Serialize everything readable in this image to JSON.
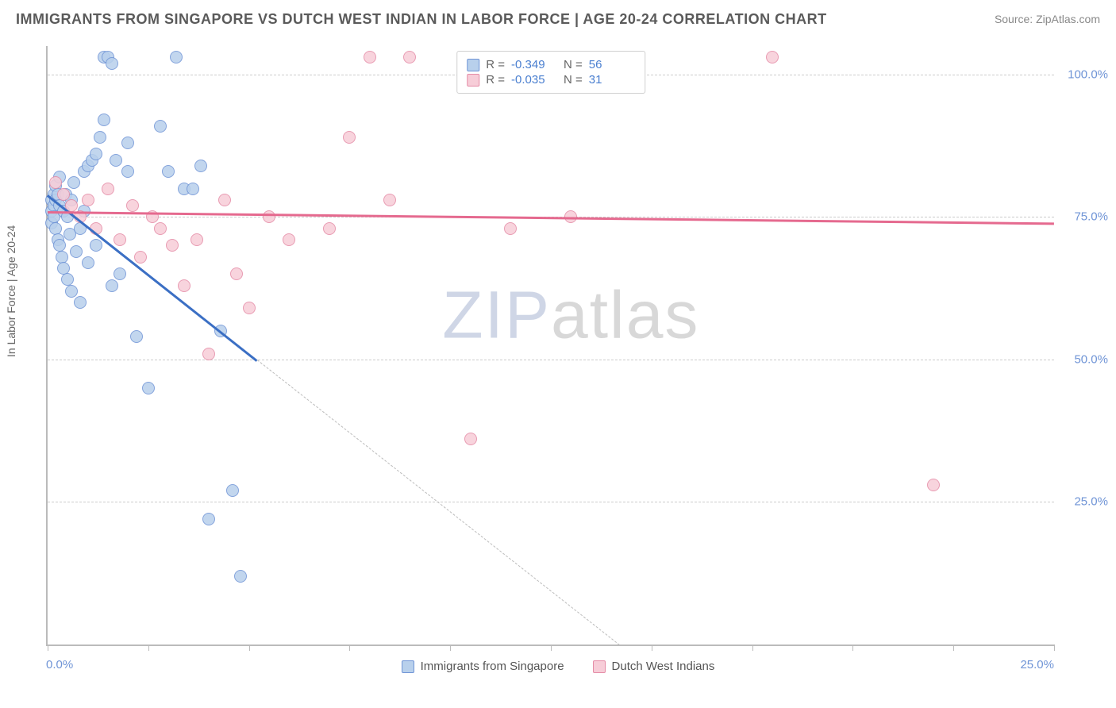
{
  "header": {
    "title": "IMMIGRANTS FROM SINGAPORE VS DUTCH WEST INDIAN IN LABOR FORCE | AGE 20-24 CORRELATION CHART",
    "source_prefix": "Source: ",
    "source_link": "ZipAtlas.com"
  },
  "chart": {
    "type": "scatter",
    "y_axis_label": "In Labor Force | Age 20-24",
    "xlim": [
      0,
      25
    ],
    "ylim": [
      0,
      105
    ],
    "x_tick_positions": [
      0,
      2.5,
      5,
      7.5,
      10,
      12.5,
      15,
      17.5,
      20,
      22.5,
      25
    ],
    "x_tick_label_left": "0.0%",
    "x_tick_label_right": "25.0%",
    "y_grid": [
      25,
      50,
      75,
      100
    ],
    "y_tick_labels": {
      "25": "25.0%",
      "50": "50.0%",
      "75": "75.0%",
      "100": "100.0%"
    },
    "background_color": "#ffffff",
    "grid_color": "#cccccc",
    "axis_color": "#bbbbbb",
    "tick_label_color": "#6f94d6",
    "watermark": "ZIPatlas",
    "series": [
      {
        "name": "Immigrants from Singapore",
        "fill": "#b8d0ec",
        "stroke": "#6f94d6",
        "line_color": "#3b6fc4",
        "R": "-0.349",
        "N": "56",
        "regression": {
          "x1": 0,
          "y1": 79,
          "x2": 5.2,
          "y2": 50,
          "x2_ext": 14.2,
          "y2_ext": 0
        },
        "points": [
          [
            0.1,
            78
          ],
          [
            0.1,
            76
          ],
          [
            0.1,
            74
          ],
          [
            0.15,
            79
          ],
          [
            0.15,
            77
          ],
          [
            0.15,
            75
          ],
          [
            0.2,
            78
          ],
          [
            0.2,
            73
          ],
          [
            0.2,
            80.5
          ],
          [
            0.25,
            79
          ],
          [
            0.25,
            71
          ],
          [
            0.3,
            77
          ],
          [
            0.3,
            82
          ],
          [
            0.3,
            70
          ],
          [
            0.35,
            68
          ],
          [
            0.4,
            76
          ],
          [
            0.4,
            66
          ],
          [
            0.45,
            79
          ],
          [
            0.5,
            75
          ],
          [
            0.5,
            64
          ],
          [
            0.55,
            72
          ],
          [
            0.6,
            78
          ],
          [
            0.6,
            62
          ],
          [
            0.65,
            81
          ],
          [
            0.7,
            69
          ],
          [
            0.8,
            73
          ],
          [
            0.8,
            60
          ],
          [
            0.9,
            76
          ],
          [
            0.9,
            83
          ],
          [
            1.0,
            84
          ],
          [
            1.0,
            67
          ],
          [
            1.1,
            85
          ],
          [
            1.2,
            86
          ],
          [
            1.2,
            70
          ],
          [
            1.3,
            89
          ],
          [
            1.4,
            92
          ],
          [
            1.4,
            103
          ],
          [
            1.5,
            103
          ],
          [
            1.6,
            102
          ],
          [
            1.6,
            63
          ],
          [
            1.7,
            85
          ],
          [
            1.8,
            65
          ],
          [
            2.0,
            88
          ],
          [
            2.0,
            83
          ],
          [
            2.2,
            54
          ],
          [
            2.5,
            45
          ],
          [
            2.8,
            91
          ],
          [
            3.0,
            83
          ],
          [
            3.2,
            103
          ],
          [
            3.4,
            80
          ],
          [
            3.6,
            80
          ],
          [
            3.8,
            84
          ],
          [
            4.0,
            22
          ],
          [
            4.3,
            55
          ],
          [
            4.6,
            27
          ],
          [
            4.8,
            12
          ]
        ]
      },
      {
        "name": "Dutch West Indians",
        "fill": "#f7cdd8",
        "stroke": "#e58ba6",
        "line_color": "#e56a8f",
        "R": "-0.035",
        "N": "31",
        "regression": {
          "x1": 0,
          "y1": 76,
          "x2": 25,
          "y2": 74
        },
        "points": [
          [
            0.2,
            81
          ],
          [
            0.4,
            79
          ],
          [
            0.6,
            77
          ],
          [
            0.8,
            75
          ],
          [
            1.0,
            78
          ],
          [
            1.2,
            73
          ],
          [
            1.5,
            80
          ],
          [
            1.8,
            71
          ],
          [
            2.1,
            77
          ],
          [
            2.3,
            68
          ],
          [
            2.6,
            75
          ],
          [
            2.8,
            73
          ],
          [
            3.1,
            70
          ],
          [
            3.4,
            63
          ],
          [
            3.7,
            71
          ],
          [
            4.0,
            51
          ],
          [
            4.4,
            78
          ],
          [
            4.7,
            65
          ],
          [
            5.0,
            59
          ],
          [
            5.5,
            75
          ],
          [
            6.0,
            71
          ],
          [
            7.0,
            73
          ],
          [
            7.5,
            89
          ],
          [
            8.0,
            103
          ],
          [
            8.5,
            78
          ],
          [
            9.0,
            103
          ],
          [
            10.5,
            36
          ],
          [
            11.5,
            73
          ],
          [
            13.0,
            75
          ],
          [
            18.0,
            103
          ],
          [
            22.0,
            28
          ]
        ]
      }
    ],
    "legend_top": {
      "R_label": "R =",
      "N_label": "N ="
    }
  }
}
